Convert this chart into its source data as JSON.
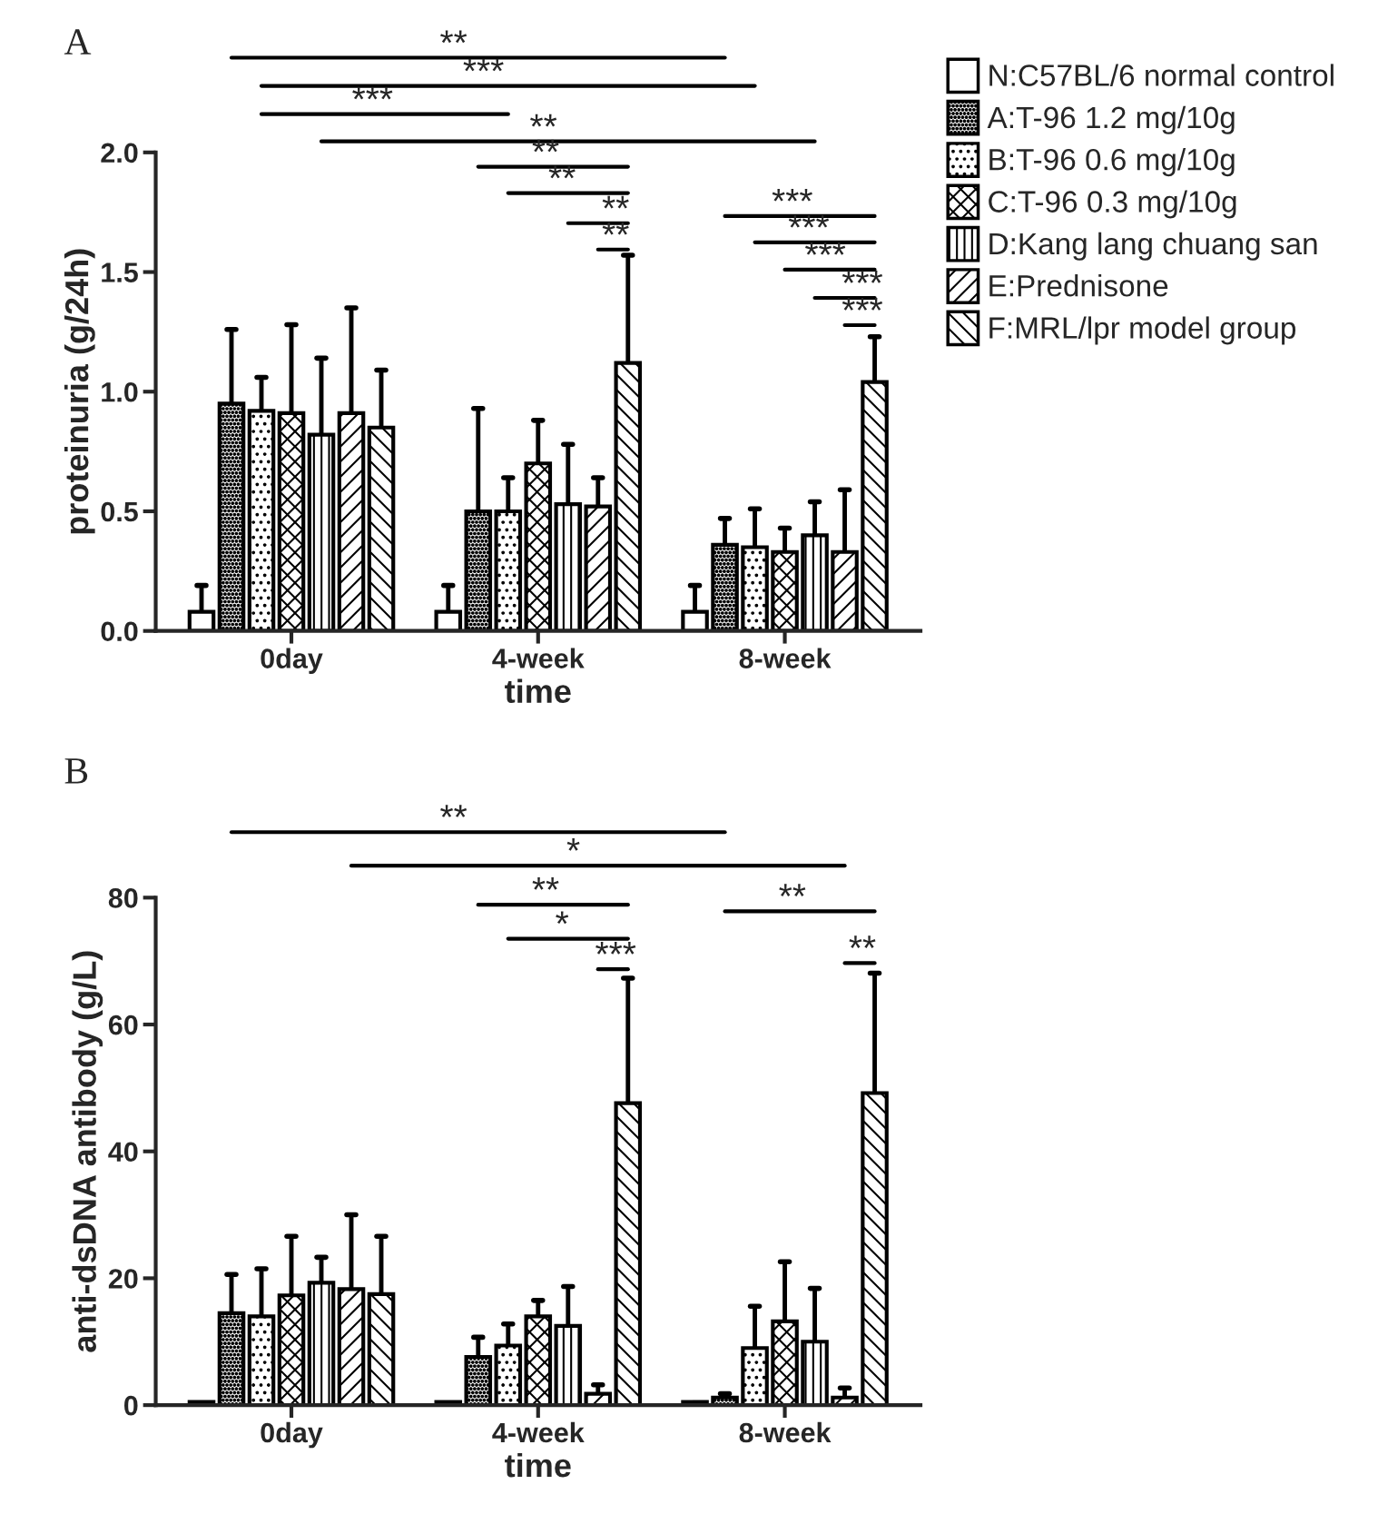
{
  "chart_data": [
    {
      "type": "bar",
      "title": "A",
      "categories": [
        "0day",
        "4-week",
        "8-week"
      ],
      "xlabel": "time",
      "ylabel": "proteinuria (g/24h)",
      "ylim": [
        0,
        2.0
      ],
      "yticks": [
        {
          "value": 0,
          "label": "0.0"
        },
        0.5,
        {
          "value": 1,
          "label": "1.0"
        },
        1.5,
        {
          "value": 2,
          "label": "2.0"
        }
      ],
      "grid": false,
      "legend": "right",
      "series": [
        {
          "name": "N:C57BL/6 normal control",
          "color": "#ffffff",
          "values": [
            0.08,
            0.08,
            0.08
          ],
          "errors": [
            [
              0.08,
              0.19
            ],
            [
              0.08,
              0.19
            ],
            [
              0.08,
              0.19
            ]
          ]
        },
        {
          "name": "A:T-96 1.2 mg/10g",
          "color": "#000000",
          "values": [
            0.95,
            0.5,
            0.36
          ],
          "errors": [
            [
              0.95,
              1.26
            ],
            [
              0.5,
              0.93
            ],
            [
              0.36,
              0.47
            ]
          ]
        },
        {
          "name": "B:T-96 0.6 mg/10g",
          "color": "#000000",
          "values": [
            0.92,
            0.5,
            0.35
          ],
          "errors": [
            [
              0.92,
              1.06
            ],
            [
              0.5,
              0.64
            ],
            [
              0.35,
              0.51
            ]
          ]
        },
        {
          "name": "C:T-96 0.3 mg/10g",
          "color": "#000000",
          "values": [
            0.91,
            0.7,
            0.33
          ],
          "errors": [
            [
              0.91,
              1.28
            ],
            [
              0.7,
              0.88
            ],
            [
              0.33,
              0.43
            ]
          ]
        },
        {
          "name": "D:Kang lang chuang san",
          "color": "#000000",
          "values": [
            0.82,
            0.53,
            0.4
          ],
          "errors": [
            [
              0.82,
              1.14
            ],
            [
              0.53,
              0.78
            ],
            [
              0.4,
              0.54
            ]
          ]
        },
        {
          "name": "E:Prednisone",
          "color": "#000000",
          "values": [
            0.91,
            0.52,
            0.33
          ],
          "errors": [
            [
              0.91,
              1.35
            ],
            [
              0.52,
              0.64
            ],
            [
              0.33,
              0.59
            ]
          ]
        },
        {
          "name": "F:MRL/lpr model group",
          "color": "#000000",
          "values": [
            0.85,
            1.12,
            1.04
          ],
          "errors": [
            [
              0.85,
              1.09
            ],
            [
              1.12,
              1.57
            ],
            [
              1.04,
              1.23
            ]
          ]
        }
      ],
      "annotations": [
        "**",
        "***",
        "***",
        "**",
        "**",
        "**",
        "**",
        "**",
        "***",
        "***",
        "***",
        "***",
        "***"
      ]
    },
    {
      "type": "bar",
      "title": "B",
      "categories": [
        "0day",
        "4-week",
        "8-week"
      ],
      "xlabel": "time",
      "ylabel": "anti-dsDNA antibody (g/L)",
      "ylim": [
        0,
        80
      ],
      "yticks": [
        0,
        20,
        40,
        60,
        80
      ],
      "grid": false,
      "series": [
        {
          "color": "#ffffff",
          "values": [
            0.5,
            0.5,
            0.5
          ]
        },
        {
          "color": "#000000",
          "values": [
            14.5,
            7.6,
            1.2
          ],
          "errors": [
            [
              14.5,
              20.6
            ],
            [
              7.6,
              10.7
            ],
            [
              1.2,
              1.8
            ]
          ]
        },
        {
          "color": "#000000",
          "values": [
            14,
            9.4,
            9
          ],
          "errors": [
            [
              14,
              21.5
            ],
            [
              9.4,
              12.8
            ],
            [
              9,
              15.6
            ]
          ]
        },
        {
          "color": "#000000",
          "values": [
            17.3,
            14,
            13.2
          ],
          "errors": [
            [
              17.3,
              26.6
            ],
            [
              14,
              16.5
            ],
            [
              13.2,
              22.6
            ]
          ]
        },
        {
          "color": "#000000",
          "values": [
            19.3,
            12.5,
            10
          ],
          "errors": [
            [
              19.3,
              23.3
            ],
            [
              12.5,
              18.7
            ],
            [
              10,
              18.4
            ]
          ]
        },
        {
          "color": "#000000",
          "values": [
            18.3,
            1.8,
            1.2
          ],
          "errors": [
            [
              18.3,
              30
            ],
            [
              1.8,
              3.2
            ],
            [
              1.2,
              2.7
            ]
          ]
        },
        {
          "color": "#000000",
          "values": [
            17.5,
            47.6,
            49.2
          ],
          "errors": [
            [
              17.5,
              26.6
            ],
            [
              47.6,
              67.3
            ],
            [
              49.2,
              68.1
            ]
          ]
        }
      ],
      "annotations": [
        "**",
        "*",
        "**",
        "*",
        "***",
        "**",
        "**"
      ]
    }
  ]
}
